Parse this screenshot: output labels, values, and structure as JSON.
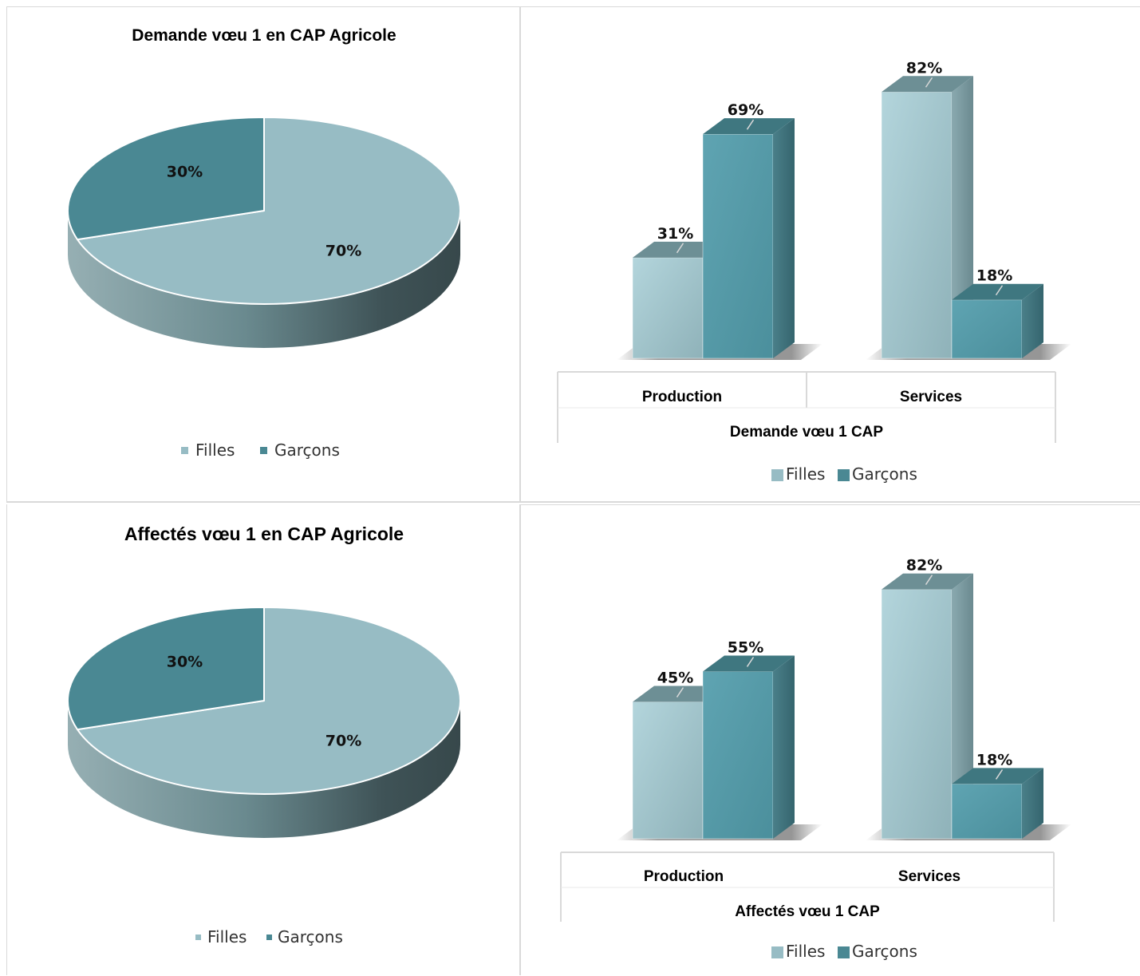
{
  "colors": {
    "filles": "#97bcc4",
    "garcons": "#4a8893"
  },
  "chart_data": [
    {
      "type": "pie",
      "title": "Demande vœu 1 en CAP Agricole",
      "slices": [
        {
          "name": "Filles",
          "value": 70,
          "label": "70%"
        },
        {
          "name": "Garçons",
          "value": 30,
          "label": "30%"
        }
      ],
      "legend": [
        "Filles",
        "Garçons"
      ],
      "legend_position": "bottom"
    },
    {
      "type": "bar",
      "categories": [
        "Production",
        "Services"
      ],
      "series": [
        {
          "name": "Filles",
          "values": [
            31,
            82
          ],
          "labels": [
            "31%",
            "82%"
          ]
        },
        {
          "name": "Garçons",
          "values": [
            69,
            18
          ],
          "labels": [
            "69%",
            "18%"
          ]
        }
      ],
      "xlabel": "Demande vœu 1 CAP",
      "legend": [
        "Filles",
        "Garçons"
      ],
      "legend_position": "bottom",
      "ylim": [
        0,
        100
      ]
    },
    {
      "type": "pie",
      "title": "Affectés vœu 1 en CAP Agricole",
      "slices": [
        {
          "name": "Filles",
          "value": 70,
          "label": "70%"
        },
        {
          "name": "Garçons",
          "value": 30,
          "label": "30%"
        }
      ],
      "legend": [
        "Filles",
        "Garçons"
      ],
      "legend_position": "bottom"
    },
    {
      "type": "bar",
      "categories": [
        "Production",
        "Services"
      ],
      "series": [
        {
          "name": "Filles",
          "values": [
            45,
            82
          ],
          "labels": [
            "45%",
            "82%"
          ]
        },
        {
          "name": "Garçons",
          "values": [
            55,
            18
          ],
          "labels": [
            "55%",
            "18%"
          ]
        }
      ],
      "xlabel": "Affectés vœu 1 CAP",
      "legend": [
        "Filles",
        "Garçons"
      ],
      "legend_position": "bottom",
      "ylim": [
        0,
        100
      ]
    }
  ]
}
